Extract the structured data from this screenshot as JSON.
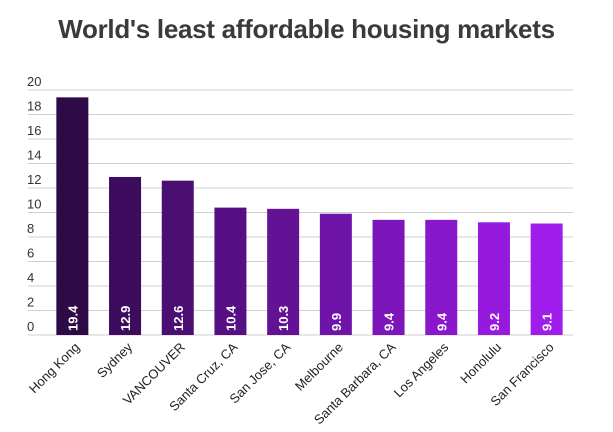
{
  "chart_data": {
    "type": "bar",
    "title": "World's least affordable housing markets",
    "xlabel": "",
    "ylabel": "",
    "categories": [
      "Hong Kong",
      "Sydney",
      "VANCOUVER",
      "Santa Cruz, CA",
      "San Jose, CA",
      "Melbourne",
      "Santa Barbara, CA",
      "Los Angeles",
      "Honolulu",
      "San Francisco"
    ],
    "values": [
      19.4,
      12.9,
      12.6,
      10.4,
      10.3,
      9.9,
      9.4,
      9.4,
      9.2,
      9.1
    ],
    "ylim": [
      0,
      20
    ],
    "yticks": [
      0,
      2,
      4,
      6,
      8,
      10,
      12,
      14,
      16,
      18,
      20
    ],
    "grid": true,
    "legend": "none",
    "data_labels": [
      "19.4",
      "12.9",
      "12.6",
      "10.4",
      "10.3",
      "9.9",
      "9.4",
      "9.4",
      "9.2",
      "9.1"
    ],
    "colors": [
      "#2e0a47",
      "#3e0c5f",
      "#4b0e72",
      "#571084",
      "#631296",
      "#6f14a8",
      "#7c16ba",
      "#8918cc",
      "#951add",
      "#a01ceb"
    ]
  }
}
